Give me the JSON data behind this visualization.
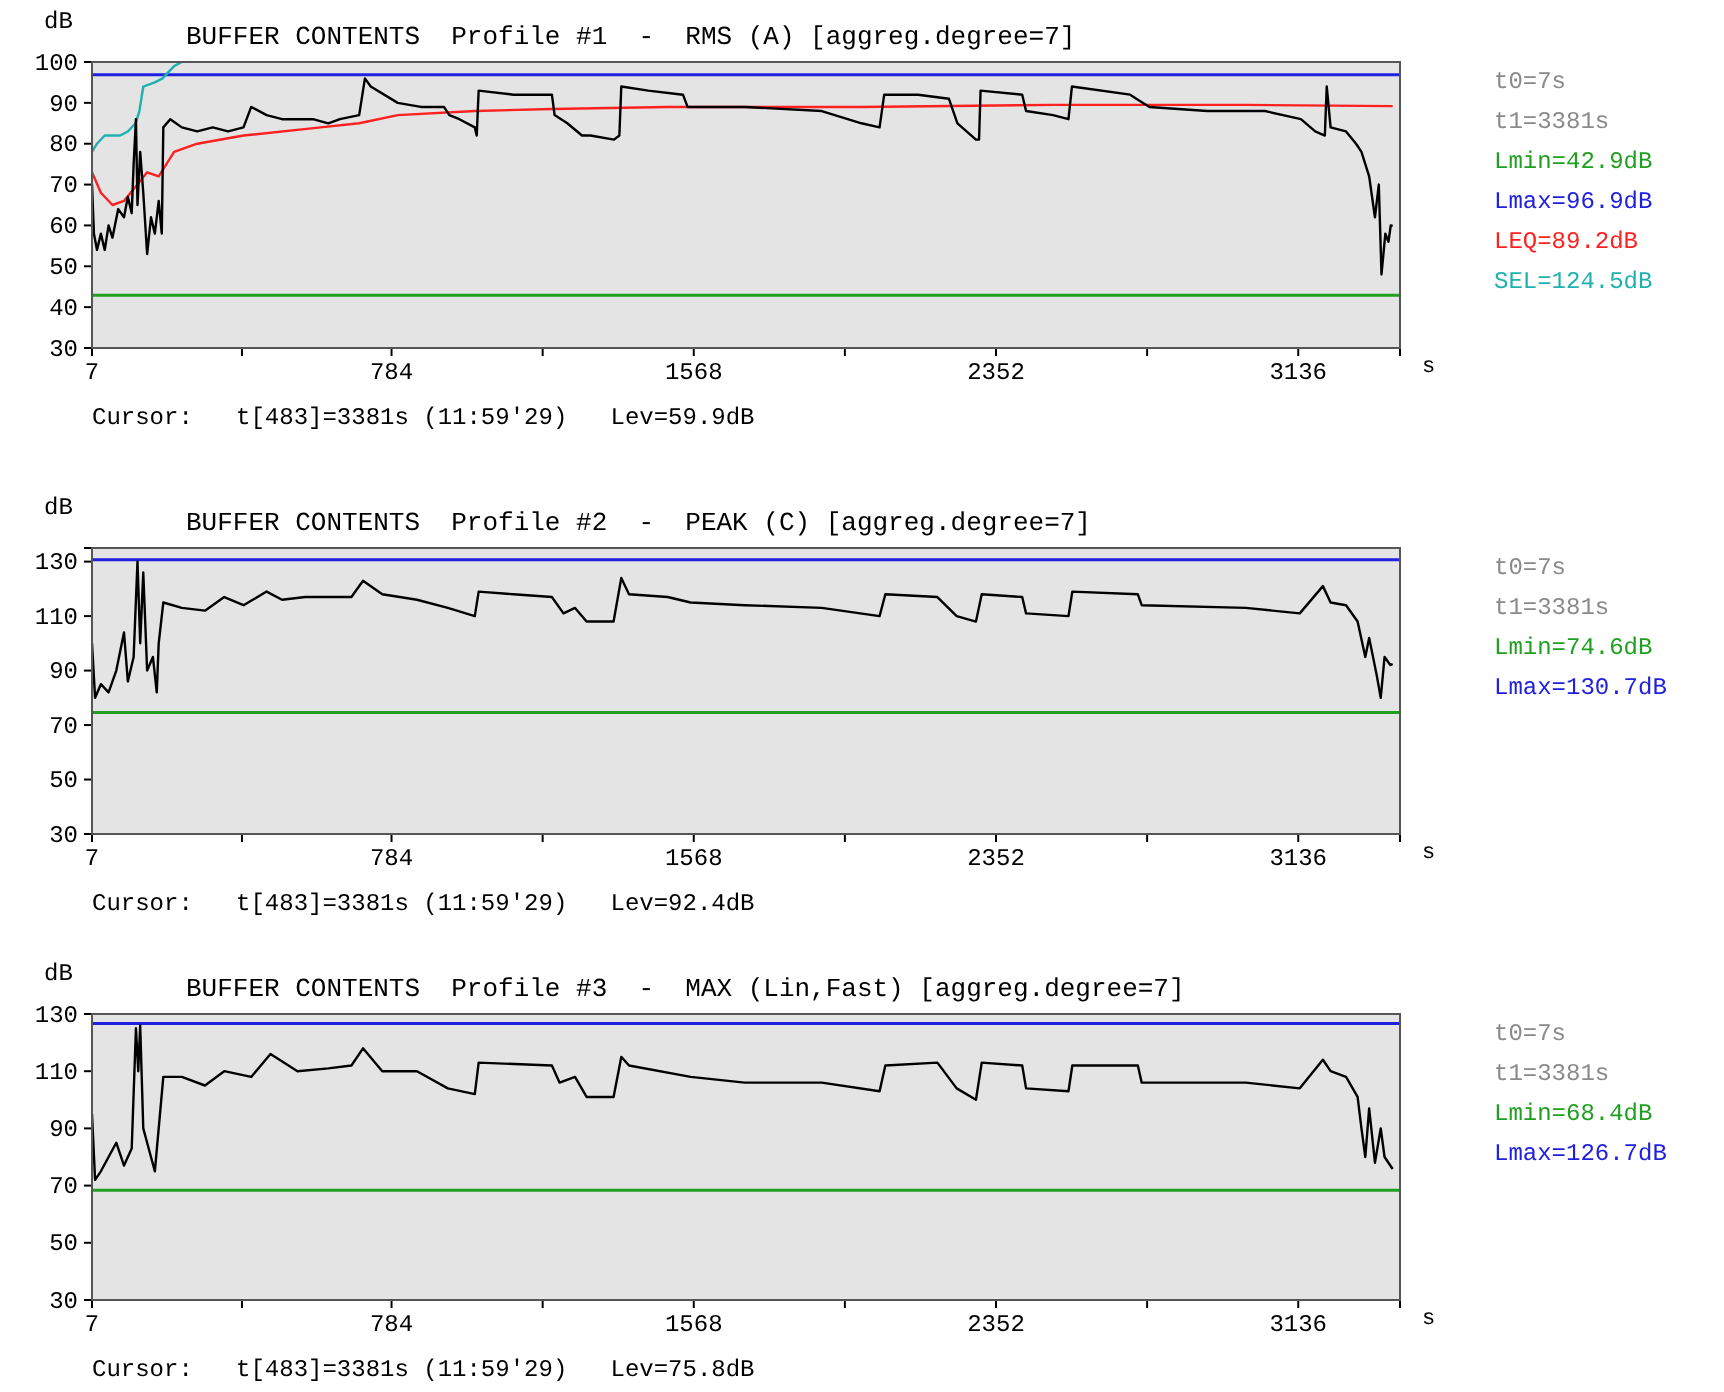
{
  "chart_data": [
    {
      "type": "line",
      "title": "BUFFER CONTENTS  Profile #1  -  RMS (A) [aggreg.degree=7]",
      "ylabel": "dB",
      "xlabel": "s",
      "annotations": [
        "t0=7s",
        "t1=3381s",
        "Cursor:   t[483]=3381s (11:59'29)   Lev=59.9dB"
      ],
      "xlim": [
        7,
        3400
      ],
      "xticks": [
        7,
        {
          "value": 396,
          "label": null
        },
        784,
        {
          "value": 1176,
          "label": null
        },
        1568,
        {
          "value": 1960,
          "label": null
        },
        2352,
        {
          "value": 2744,
          "label": null
        },
        3136
      ],
      "ylim": [
        30,
        100
      ],
      "yticks": [
        30,
        40,
        50,
        60,
        70,
        80,
        90,
        100
      ],
      "legend": "right",
      "ref_lines": [
        {
          "axis": "y",
          "value": 42.9,
          "label": "Lmin=42.9dB",
          "color": "#20a020"
        },
        {
          "axis": "y",
          "value": 96.9,
          "label": "Lmax=96.9dB",
          "color": "#2020e0"
        }
      ],
      "series": [
        {
          "color": "#000000",
          "x": [
            7,
            12,
            20,
            30,
            40,
            50,
            60,
            75,
            90,
            100,
            110,
            115,
            121,
            125,
            132,
            140,
            150,
            160,
            170,
            180,
            188,
            192,
            210,
            240,
            280,
            320,
            360,
            400,
            420,
            460,
            500,
            540,
            580,
            620,
            650,
            700,
            715,
            730,
            800,
            860,
            920,
            934,
            960,
            1000,
            1005,
            1010,
            1100,
            1200,
            1207,
            1240,
            1278,
            1300,
            1361,
            1375,
            1380,
            1450,
            1540,
            1552,
            1700,
            1900,
            2003,
            2050,
            2062,
            2150,
            2230,
            2252,
            2300,
            2308,
            2312,
            2420,
            2430,
            2500,
            2540,
            2549,
            2700,
            2716,
            2750,
            2900,
            3050,
            3143,
            3180,
            3205,
            3210,
            3220,
            3260,
            3286,
            3300,
            3320,
            3335,
            3345,
            3352,
            3362,
            3370,
            3376,
            3381
          ],
          "values": [
            70,
            58,
            54,
            58,
            54,
            60,
            57,
            64,
            62,
            67,
            63,
            75,
            86,
            65,
            78,
            68,
            53,
            62,
            58,
            66,
            58,
            84,
            86,
            84,
            83,
            84,
            83,
            84,
            89,
            87,
            86,
            86,
            86,
            85,
            86,
            87,
            96,
            94,
            90,
            89,
            89,
            87,
            86,
            84,
            82,
            93,
            92,
            92,
            87,
            85,
            82,
            82,
            81,
            82,
            94,
            93,
            92,
            89,
            89,
            88,
            85,
            84,
            92,
            92,
            91,
            85,
            81,
            81,
            93,
            92,
            88,
            87,
            86,
            94,
            92,
            91,
            89,
            88,
            88,
            86,
            83,
            82,
            94,
            84,
            83,
            80,
            78,
            72,
            62,
            70,
            48,
            58,
            56,
            60,
            59.9
          ]
        },
        {
          "name": "LEQ=89.2dB",
          "color": "#ff2020",
          "x": [
            7,
            30,
            60,
            90,
            150,
            180,
            220,
            280,
            400,
            600,
            700,
            800,
            1000,
            1200,
            1500,
            2000,
            2500,
            3000,
            3381
          ],
          "values": [
            73,
            68,
            65,
            66,
            73,
            72,
            78,
            80,
            82,
            84,
            85,
            87,
            88,
            88.5,
            89,
            89,
            89.5,
            89.5,
            89.2
          ]
        },
        {
          "name": "SEL=124.5dB",
          "color": "#20b0b0",
          "x": [
            7,
            20,
            40,
            80,
            100,
            120,
            130,
            140,
            170,
            190,
            220,
            240
          ],
          "values": [
            78,
            80,
            82,
            82,
            83,
            85,
            88,
            94,
            95,
            96,
            99,
            100
          ]
        }
      ]
    },
    {
      "type": "line",
      "title": "BUFFER CONTENTS  Profile #2  -  PEAK (C) [aggreg.degree=7]",
      "ylabel": "dB",
      "xlabel": "s",
      "annotations": [
        "t0=7s",
        "t1=3381s",
        "Cursor:   t[483]=3381s (11:59'29)   Lev=92.4dB"
      ],
      "xlim": [
        7,
        3400
      ],
      "xticks": [
        7,
        {
          "value": 396,
          "label": null
        },
        784,
        {
          "value": 1176,
          "label": null
        },
        1568,
        {
          "value": 1960,
          "label": null
        },
        2352,
        {
          "value": 2744,
          "label": null
        },
        3136
      ],
      "ylim": [
        30,
        135
      ],
      "yticks": [
        30,
        50,
        70,
        90,
        110,
        130
      ],
      "legend": "right",
      "ref_lines": [
        {
          "axis": "y",
          "value": 74.6,
          "label": "Lmin=74.6dB",
          "color": "#20a020"
        },
        {
          "axis": "y",
          "value": 130.7,
          "label": "Lmax=130.7dB",
          "color": "#2020e0"
        }
      ],
      "series": [
        {
          "color": "#000000",
          "x": [
            7,
            15,
            30,
            50,
            70,
            90,
            100,
            115,
            125,
            132,
            140,
            150,
            165,
            175,
            180,
            192,
            240,
            300,
            350,
            400,
            460,
            500,
            560,
            620,
            680,
            710,
            760,
            850,
            930,
            1000,
            1010,
            1100,
            1200,
            1230,
            1260,
            1290,
            1360,
            1380,
            1400,
            1500,
            1560,
            1700,
            1900,
            2050,
            2065,
            2200,
            2250,
            2300,
            2315,
            2420,
            2430,
            2540,
            2550,
            2720,
            2730,
            3000,
            3140,
            3200,
            3220,
            3260,
            3290,
            3310,
            3320,
            3340,
            3350,
            3360,
            3375,
            3381
          ],
          "values": [
            100,
            80,
            85,
            82,
            90,
            104,
            86,
            95,
            130,
            100,
            126,
            90,
            95,
            82,
            100,
            115,
            113,
            112,
            117,
            114,
            119,
            116,
            117,
            117,
            117,
            123,
            118,
            116,
            113,
            110,
            119,
            118,
            117,
            111,
            113,
            108,
            108,
            124,
            118,
            117,
            115,
            114,
            113,
            110,
            118,
            117,
            110,
            108,
            118,
            117,
            111,
            110,
            119,
            118,
            114,
            113,
            111,
            121,
            115,
            114,
            108,
            95,
            102,
            88,
            80,
            95,
            92,
            92.4
          ]
        }
      ]
    },
    {
      "type": "line",
      "title": "BUFFER CONTENTS  Profile #3  -  MAX (Lin,Fast) [aggreg.degree=7]",
      "ylabel": "dB",
      "xlabel": "s",
      "annotations": [
        "t0=7s",
        "t1=3381s",
        "Cursor:   t[483]=3381s (11:59'29)   Lev=75.8dB"
      ],
      "xlim": [
        7,
        3400
      ],
      "xticks": [
        7,
        {
          "value": 396,
          "label": null
        },
        784,
        {
          "value": 1176,
          "label": null
        },
        1568,
        {
          "value": 1960,
          "label": null
        },
        2352,
        {
          "value": 2744,
          "label": null
        },
        3136
      ],
      "ylim": [
        30,
        130
      ],
      "yticks": [
        30,
        50,
        70,
        90,
        110,
        130
      ],
      "legend": "right",
      "ref_lines": [
        {
          "axis": "y",
          "value": 68.4,
          "label": "Lmin=68.4dB",
          "color": "#20a020"
        },
        {
          "axis": "y",
          "value": 126.7,
          "label": "Lmax=126.7dB",
          "color": "#2020e0"
        }
      ],
      "series": [
        {
          "color": "#000000",
          "x": [
            7,
            15,
            30,
            50,
            70,
            90,
            110,
            121,
            127,
            132,
            140,
            150,
            170,
            180,
            192,
            240,
            300,
            350,
            420,
            470,
            540,
            620,
            680,
            710,
            760,
            850,
            930,
            1000,
            1010,
            1200,
            1220,
            1260,
            1290,
            1360,
            1380,
            1400,
            1560,
            1700,
            1900,
            2050,
            2065,
            2200,
            2250,
            2300,
            2315,
            2420,
            2430,
            2540,
            2550,
            2720,
            2730,
            3000,
            3140,
            3200,
            3220,
            3260,
            3290,
            3300,
            3310,
            3320,
            3335,
            3350,
            3360,
            3381
          ],
          "values": [
            95,
            72,
            75,
            80,
            85,
            77,
            83,
            125,
            110,
            126,
            90,
            85,
            75,
            90,
            108,
            108,
            105,
            110,
            108,
            116,
            110,
            111,
            112,
            118,
            110,
            110,
            104,
            102,
            113,
            112,
            106,
            108,
            101,
            101,
            115,
            112,
            108,
            106,
            106,
            103,
            112,
            113,
            104,
            100,
            113,
            112,
            104,
            103,
            112,
            112,
            106,
            106,
            104,
            114,
            110,
            108,
            101,
            90,
            80,
            97,
            78,
            90,
            80,
            75.8
          ]
        }
      ]
    }
  ]
}
